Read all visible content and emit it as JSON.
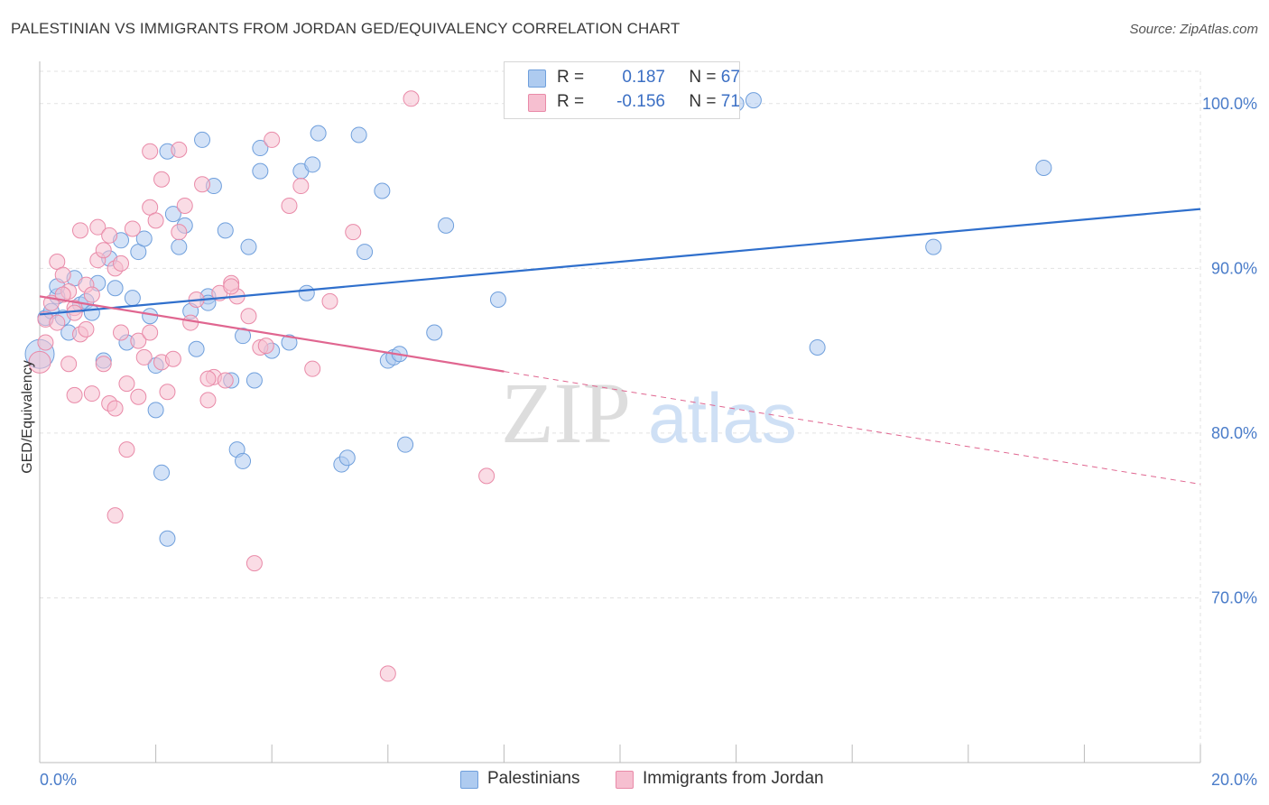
{
  "header": {
    "title": "PALESTINIAN VS IMMIGRANTS FROM JORDAN GED/EQUIVALENCY CORRELATION CHART",
    "source": "Source: ZipAtlas.com"
  },
  "watermark": {
    "zip": "ZIP",
    "atlas": "atlas"
  },
  "legend": {
    "r_label": "R =",
    "n_label": "N =",
    "series": [
      {
        "r": "0.187",
        "n": "67"
      },
      {
        "r": "-0.156",
        "n": "71"
      }
    ]
  },
  "bottom_legend": [
    "Palestinians",
    "Immigrants from Jordan"
  ],
  "colors": {
    "blue_fill": "#aecbf0",
    "blue_stroke": "#6f9fdc",
    "blue_line": "#2f6fcc",
    "pink_fill": "#f6bfd0",
    "pink_stroke": "#e98aa8",
    "pink_line": "#e06690",
    "axis_text": "#4a7cc9",
    "grid": "#e2e2e2"
  },
  "chart_data": {
    "type": "scatter",
    "title": "PALESTINIAN VS IMMIGRANTS FROM JORDAN GED/EQUIVALENCY CORRELATION CHART",
    "xlabel": "",
    "ylabel": "GED/Equivalency",
    "xlim": [
      0,
      20
    ],
    "ylim": [
      60,
      103
    ],
    "x_ticks": [
      "0.0%",
      "20.0%"
    ],
    "y_ticks": [
      {
        "value": 100,
        "label": "100.0%"
      },
      {
        "value": 90,
        "label": "90.0%"
      },
      {
        "value": 80,
        "label": "80.0%"
      },
      {
        "value": 70,
        "label": "70.0%"
      }
    ],
    "grid": true,
    "legend_position": "top-center",
    "series": [
      {
        "name": "Palestinians",
        "r": 0.187,
        "n": 67,
        "trend": {
          "x0": 0,
          "y0": 87.2,
          "x1": 20,
          "y1": 93.6,
          "solid_until": 20
        },
        "points": [
          [
            0.0,
            84.8
          ],
          [
            0.1,
            87.0
          ],
          [
            0.2,
            87.4
          ],
          [
            0.3,
            88.3
          ],
          [
            0.3,
            88.9
          ],
          [
            0.4,
            87.0
          ],
          [
            0.5,
            86.1
          ],
          [
            0.6,
            89.4
          ],
          [
            0.7,
            87.8
          ],
          [
            0.8,
            88.0
          ],
          [
            0.9,
            87.3
          ],
          [
            1.0,
            89.1
          ],
          [
            1.1,
            84.4
          ],
          [
            1.2,
            90.6
          ],
          [
            1.3,
            88.8
          ],
          [
            1.4,
            91.7
          ],
          [
            1.5,
            85.5
          ],
          [
            1.6,
            88.2
          ],
          [
            1.7,
            91.0
          ],
          [
            1.8,
            91.8
          ],
          [
            1.9,
            87.1
          ],
          [
            2.0,
            84.1
          ],
          [
            2.0,
            81.4
          ],
          [
            2.1,
            77.6
          ],
          [
            2.2,
            73.6
          ],
          [
            2.2,
            97.1
          ],
          [
            2.3,
            93.3
          ],
          [
            2.4,
            91.3
          ],
          [
            2.5,
            92.6
          ],
          [
            2.6,
            87.4
          ],
          [
            2.7,
            85.1
          ],
          [
            2.8,
            97.8
          ],
          [
            2.9,
            88.3
          ],
          [
            2.9,
            87.9
          ],
          [
            3.0,
            95.0
          ],
          [
            3.2,
            92.3
          ],
          [
            3.3,
            83.2
          ],
          [
            3.4,
            79.0
          ],
          [
            3.5,
            85.9
          ],
          [
            3.5,
            78.3
          ],
          [
            3.6,
            91.3
          ],
          [
            3.7,
            83.2
          ],
          [
            3.8,
            97.3
          ],
          [
            3.8,
            95.9
          ],
          [
            4.0,
            85.0
          ],
          [
            4.3,
            85.5
          ],
          [
            4.5,
            95.9
          ],
          [
            4.6,
            88.5
          ],
          [
            4.7,
            96.3
          ],
          [
            4.8,
            98.2
          ],
          [
            5.2,
            78.1
          ],
          [
            5.3,
            78.5
          ],
          [
            5.5,
            98.1
          ],
          [
            5.6,
            91.0
          ],
          [
            5.9,
            94.7
          ],
          [
            6.0,
            84.4
          ],
          [
            6.1,
            84.6
          ],
          [
            6.2,
            84.8
          ],
          [
            6.3,
            79.3
          ],
          [
            6.8,
            86.1
          ],
          [
            7.0,
            92.6
          ],
          [
            7.9,
            88.1
          ],
          [
            12.0,
            100.0
          ],
          [
            12.3,
            100.2
          ],
          [
            13.4,
            85.2
          ],
          [
            15.4,
            91.3
          ],
          [
            17.3,
            96.1
          ]
        ]
      },
      {
        "name": "Immigrants from Jordan",
        "r": -0.156,
        "n": 71,
        "trend": {
          "x0": 0,
          "y0": 88.3,
          "x1": 20,
          "y1": 76.9,
          "solid_until": 8.0
        },
        "points": [
          [
            0.0,
            84.3
          ],
          [
            0.1,
            86.9
          ],
          [
            0.1,
            85.5
          ],
          [
            0.2,
            87.9
          ],
          [
            0.3,
            86.7
          ],
          [
            0.3,
            90.4
          ],
          [
            0.4,
            89.6
          ],
          [
            0.5,
            88.6
          ],
          [
            0.5,
            84.2
          ],
          [
            0.6,
            87.6
          ],
          [
            0.6,
            82.3
          ],
          [
            0.7,
            86.0
          ],
          [
            0.7,
            92.3
          ],
          [
            0.8,
            86.3
          ],
          [
            0.8,
            89.0
          ],
          [
            0.9,
            82.4
          ],
          [
            0.9,
            88.4
          ],
          [
            1.0,
            90.5
          ],
          [
            1.0,
            92.5
          ],
          [
            1.1,
            91.1
          ],
          [
            1.1,
            84.2
          ],
          [
            1.2,
            81.8
          ],
          [
            1.2,
            92.0
          ],
          [
            1.3,
            81.5
          ],
          [
            1.3,
            90.0
          ],
          [
            1.4,
            86.1
          ],
          [
            1.4,
            90.3
          ],
          [
            1.5,
            83.0
          ],
          [
            1.5,
            79.0
          ],
          [
            1.6,
            92.4
          ],
          [
            1.7,
            85.6
          ],
          [
            1.7,
            82.2
          ],
          [
            1.8,
            84.6
          ],
          [
            1.9,
            93.7
          ],
          [
            1.9,
            97.1
          ],
          [
            2.0,
            92.9
          ],
          [
            2.1,
            84.3
          ],
          [
            2.1,
            95.4
          ],
          [
            2.2,
            82.5
          ],
          [
            2.3,
            84.5
          ],
          [
            2.4,
            92.2
          ],
          [
            2.5,
            93.8
          ],
          [
            2.6,
            86.7
          ],
          [
            2.7,
            88.1
          ],
          [
            2.8,
            95.1
          ],
          [
            2.9,
            82.0
          ],
          [
            3.0,
            83.4
          ],
          [
            3.1,
            88.5
          ],
          [
            3.2,
            83.2
          ],
          [
            3.3,
            89.1
          ],
          [
            3.4,
            88.3
          ],
          [
            3.6,
            87.1
          ],
          [
            3.7,
            72.1
          ],
          [
            3.8,
            85.2
          ],
          [
            3.9,
            85.3
          ],
          [
            4.0,
            97.8
          ],
          [
            4.3,
            93.8
          ],
          [
            4.5,
            95.0
          ],
          [
            4.7,
            83.9
          ],
          [
            5.0,
            88.0
          ],
          [
            5.4,
            92.2
          ],
          [
            6.0,
            65.4
          ],
          [
            6.4,
            100.3
          ],
          [
            7.7,
            77.4
          ],
          [
            2.4,
            97.2
          ],
          [
            1.3,
            75.0
          ],
          [
            0.4,
            88.4
          ],
          [
            1.9,
            86.1
          ],
          [
            2.9,
            83.3
          ],
          [
            0.6,
            87.3
          ],
          [
            3.3,
            88.9
          ]
        ]
      }
    ]
  }
}
